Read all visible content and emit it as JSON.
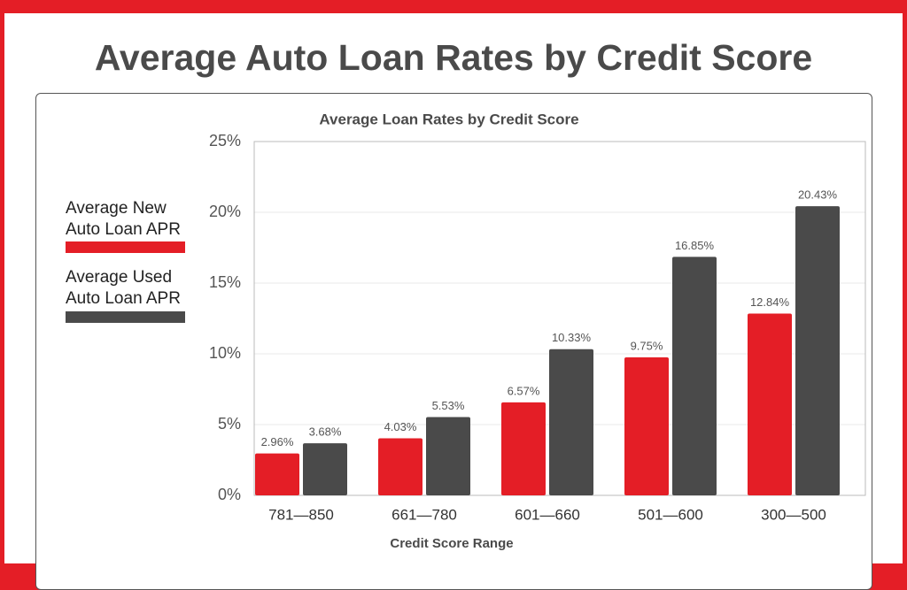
{
  "heading": "Average Auto Loan Rates by Credit Score",
  "chart_data": {
    "type": "bar",
    "title": "Average Loan Rates by Credit Score",
    "x_label": "Credit Score Range",
    "categories": [
      "781—850",
      "661—780",
      "601—660",
      "501—600",
      "300—500"
    ],
    "series": [
      {
        "name": "Average New Auto Loan APR",
        "color": "#e41e26",
        "values": [
          2.96,
          4.03,
          6.57,
          9.75,
          12.84
        ],
        "value_labels": [
          "2.96%",
          "4.03%",
          "6.57%",
          "9.75%",
          "12.84%"
        ]
      },
      {
        "name": "Average Used Auto Loan APR",
        "color": "#4a4a4a",
        "values": [
          3.68,
          5.53,
          10.33,
          16.85,
          20.43
        ],
        "value_labels": [
          "3.68%",
          "5.53%",
          "10.33%",
          "16.85%",
          "20.43%"
        ]
      }
    ],
    "ylim": [
      0,
      25
    ],
    "yticks": [
      {
        "value": 0,
        "label": "0%"
      },
      {
        "value": 5,
        "label": "5%"
      },
      {
        "value": 10,
        "label": "10%"
      },
      {
        "value": 15,
        "label": "15%"
      },
      {
        "value": 20,
        "label": "20%"
      },
      {
        "value": 25,
        "label": "25%"
      }
    ],
    "grid": true,
    "legend": "left"
  }
}
